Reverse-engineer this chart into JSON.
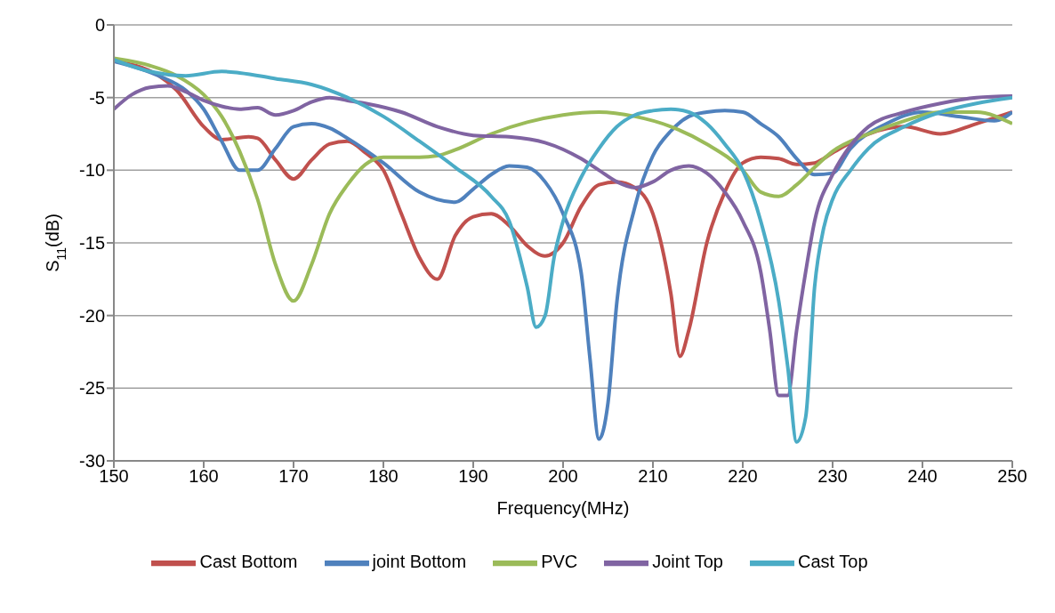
{
  "chart_data": {
    "type": "line",
    "xlabel": "Frequency(MHz)",
    "ylabel": "S$_{11}$(dB)",
    "xlim": [
      150,
      250
    ],
    "xticks": [
      150,
      160,
      170,
      180,
      190,
      200,
      210,
      220,
      230,
      240,
      250
    ],
    "ylim": [
      -30,
      0
    ],
    "yticks": [
      -30,
      -25,
      -20,
      -15,
      -10,
      -5,
      0
    ],
    "grid": "y",
    "legend": "bottom",
    "marker": "none",
    "line_style": "solid",
    "series": [
      {
        "name": "Cast Bottom",
        "color": "#c0504d",
        "x": [
          150,
          155,
          157,
          160,
          162,
          165,
          166,
          168,
          170,
          172,
          174,
          176,
          178,
          180,
          182,
          184,
          186,
          188,
          190,
          192,
          194,
          196,
          198,
          200,
          202,
          204,
          206,
          208,
          210,
          212,
          213,
          214,
          216,
          218,
          220,
          222,
          224,
          226,
          228,
          230,
          234,
          238,
          242,
          246,
          250
        ],
        "values": [
          -2.5,
          -3.5,
          -4.5,
          -7,
          -7.9,
          -7.7,
          -7.8,
          -9.3,
          -10.6,
          -9.3,
          -8.2,
          -8,
          -8.8,
          -10,
          -13,
          -16,
          -17.5,
          -14.5,
          -13.2,
          -13,
          -13.8,
          -15.2,
          -15.9,
          -15,
          -12.5,
          -11,
          -10.8,
          -11.2,
          -13,
          -18.5,
          -22.8,
          -21,
          -15,
          -11.5,
          -9.5,
          -9.1,
          -9.2,
          -9.6,
          -9.5,
          -8.8,
          -7.5,
          -7,
          -7.5,
          -6.8,
          -6
        ]
      },
      {
        "name": "joint Bottom",
        "color": "#4f81bd",
        "x": [
          150,
          155,
          158,
          160,
          162,
          164,
          166,
          168,
          170,
          172,
          174,
          176,
          180,
          184,
          188,
          190,
          192,
          194,
          196,
          198,
          200,
          202,
          203,
          204,
          205,
          206,
          208,
          210,
          212,
          214,
          216,
          218,
          220,
          222,
          224,
          226,
          228,
          230,
          232,
          236,
          240,
          244,
          248,
          250
        ],
        "values": [
          -2.5,
          -3.5,
          -4.5,
          -5.8,
          -8,
          -10,
          -10,
          -8.5,
          -7,
          -6.8,
          -7.1,
          -7.8,
          -9.5,
          -11.5,
          -12.2,
          -11.3,
          -10.3,
          -9.7,
          -9.8,
          -10.8,
          -13,
          -17,
          -23,
          -28.5,
          -26,
          -19,
          -12.5,
          -9,
          -7.3,
          -6.3,
          -6,
          -5.9,
          -6,
          -6.8,
          -7.7,
          -9.2,
          -10.3,
          -10.2,
          -8.5,
          -6.8,
          -6,
          -6.3,
          -6.6,
          -6
        ]
      },
      {
        "name": "PVC",
        "color": "#9bbb59",
        "x": [
          150,
          154,
          157,
          160,
          162,
          164,
          166,
          168,
          170,
          172,
          174,
          176,
          178,
          180,
          184,
          186,
          188,
          192,
          196,
          200,
          204,
          208,
          212,
          216,
          220,
          222,
          224,
          226,
          228,
          230,
          234,
          238,
          242,
          246,
          250
        ],
        "values": [
          -2.3,
          -2.8,
          -3.5,
          -4.8,
          -6.3,
          -8.7,
          -12,
          -16.5,
          -19,
          -16.5,
          -13,
          -11,
          -9.6,
          -9.1,
          -9.1,
          -9,
          -8.6,
          -7.5,
          -6.7,
          -6.2,
          -6,
          -6.3,
          -7,
          -8.2,
          -10,
          -11.5,
          -11.8,
          -11,
          -9.8,
          -8.7,
          -7.5,
          -6.6,
          -6,
          -6,
          -6.8
        ]
      },
      {
        "name": "Joint Top",
        "color": "#8064a2",
        "x": [
          150,
          152,
          154,
          156,
          158,
          160,
          162,
          164,
          166,
          168,
          170,
          172,
          174,
          176,
          178,
          182,
          186,
          190,
          194,
          198,
          202,
          204,
          206,
          208,
          210,
          212,
          214,
          216,
          218,
          220,
          222,
          223,
          224,
          225,
          226,
          227,
          228,
          230,
          232,
          234,
          238,
          242,
          246,
          250
        ],
        "values": [
          -5.8,
          -4.8,
          -4.3,
          -4.2,
          -4.6,
          -5.2,
          -5.6,
          -5.8,
          -5.7,
          -6.2,
          -5.9,
          -5.3,
          -5,
          -5.2,
          -5.4,
          -6,
          -7,
          -7.6,
          -7.7,
          -8.1,
          -9.2,
          -10,
          -10.8,
          -11.2,
          -10.8,
          -10,
          -9.7,
          -10.2,
          -11.5,
          -13.5,
          -17,
          -21,
          -25.5,
          -25.5,
          -21,
          -17,
          -13.5,
          -10.3,
          -8.3,
          -7,
          -6,
          -5.4,
          -5,
          -4.9
        ]
      },
      {
        "name": "Cast Top",
        "color": "#4bacc6",
        "x": [
          150,
          154,
          158,
          162,
          164,
          168,
          172,
          176,
          180,
          184,
          188,
          192,
          194,
          196,
          197,
          198,
          199,
          200,
          202,
          204,
          206,
          208,
          210,
          212,
          214,
          216,
          218,
          220,
          222,
          224,
          225,
          226,
          227,
          228,
          229,
          230,
          232,
          234,
          238,
          242,
          246,
          250
        ],
        "values": [
          -2.4,
          -3.2,
          -3.5,
          -3.2,
          -3.3,
          -3.7,
          -4.1,
          -5,
          -6.3,
          -8,
          -9.8,
          -11.8,
          -13.5,
          -18,
          -20.8,
          -20,
          -16,
          -13.5,
          -10.5,
          -8.5,
          -7,
          -6.2,
          -5.9,
          -5.8,
          -6,
          -6.8,
          -8.2,
          -10,
          -13.5,
          -19,
          -23.5,
          -28.7,
          -27,
          -18,
          -14,
          -12,
          -10,
          -8.5,
          -7,
          -6,
          -5.4,
          -5
        ]
      }
    ]
  }
}
